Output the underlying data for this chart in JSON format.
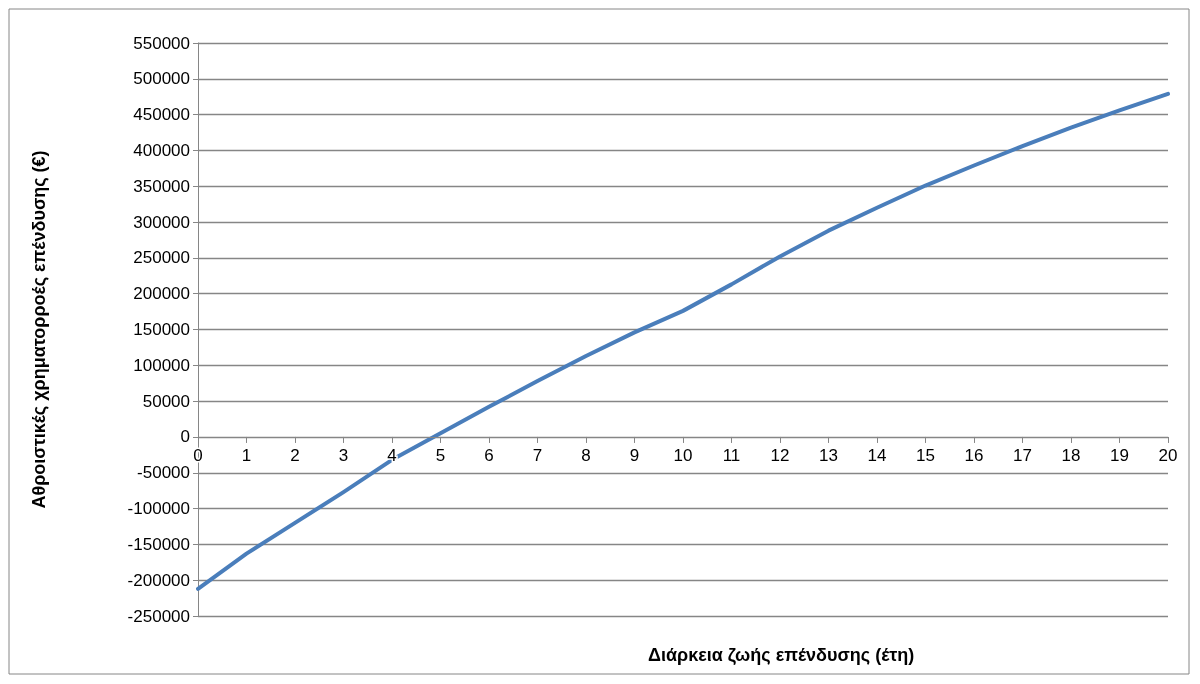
{
  "chart_data": {
    "type": "line",
    "xlabel": "Διάρκεια ζωής επένδυσης (έτη)",
    "ylabel": "Αθροιστικές χρηματορροές επένδυσης (€)",
    "x": [
      0,
      1,
      2,
      3,
      4,
      5,
      6,
      7,
      8,
      9,
      10,
      11,
      12,
      13,
      14,
      15,
      16,
      17,
      18,
      19,
      20
    ],
    "series": [
      {
        "color": "#4a7ebb",
        "values": [
          -212000,
          -163000,
          -120000,
          -77000,
          -32000,
          5000,
          42000,
          78000,
          113000,
          146000,
          176000,
          213000,
          252000,
          288000,
          320000,
          351000,
          379000,
          406000,
          432000,
          456000,
          479000
        ]
      }
    ],
    "xlim": [
      0,
      20
    ],
    "xticks": [
      0,
      1,
      2,
      3,
      4,
      5,
      6,
      7,
      8,
      9,
      10,
      11,
      12,
      13,
      14,
      15,
      16,
      17,
      18,
      19,
      20
    ],
    "ylim": [
      -250000,
      550000
    ],
    "yticks": [
      -250000,
      -200000,
      -150000,
      -100000,
      -50000,
      0,
      50000,
      100000,
      150000,
      200000,
      250000,
      300000,
      350000,
      400000,
      450000,
      500000,
      550000
    ],
    "grid": "y",
    "marker": "none",
    "line_style": "solid"
  }
}
